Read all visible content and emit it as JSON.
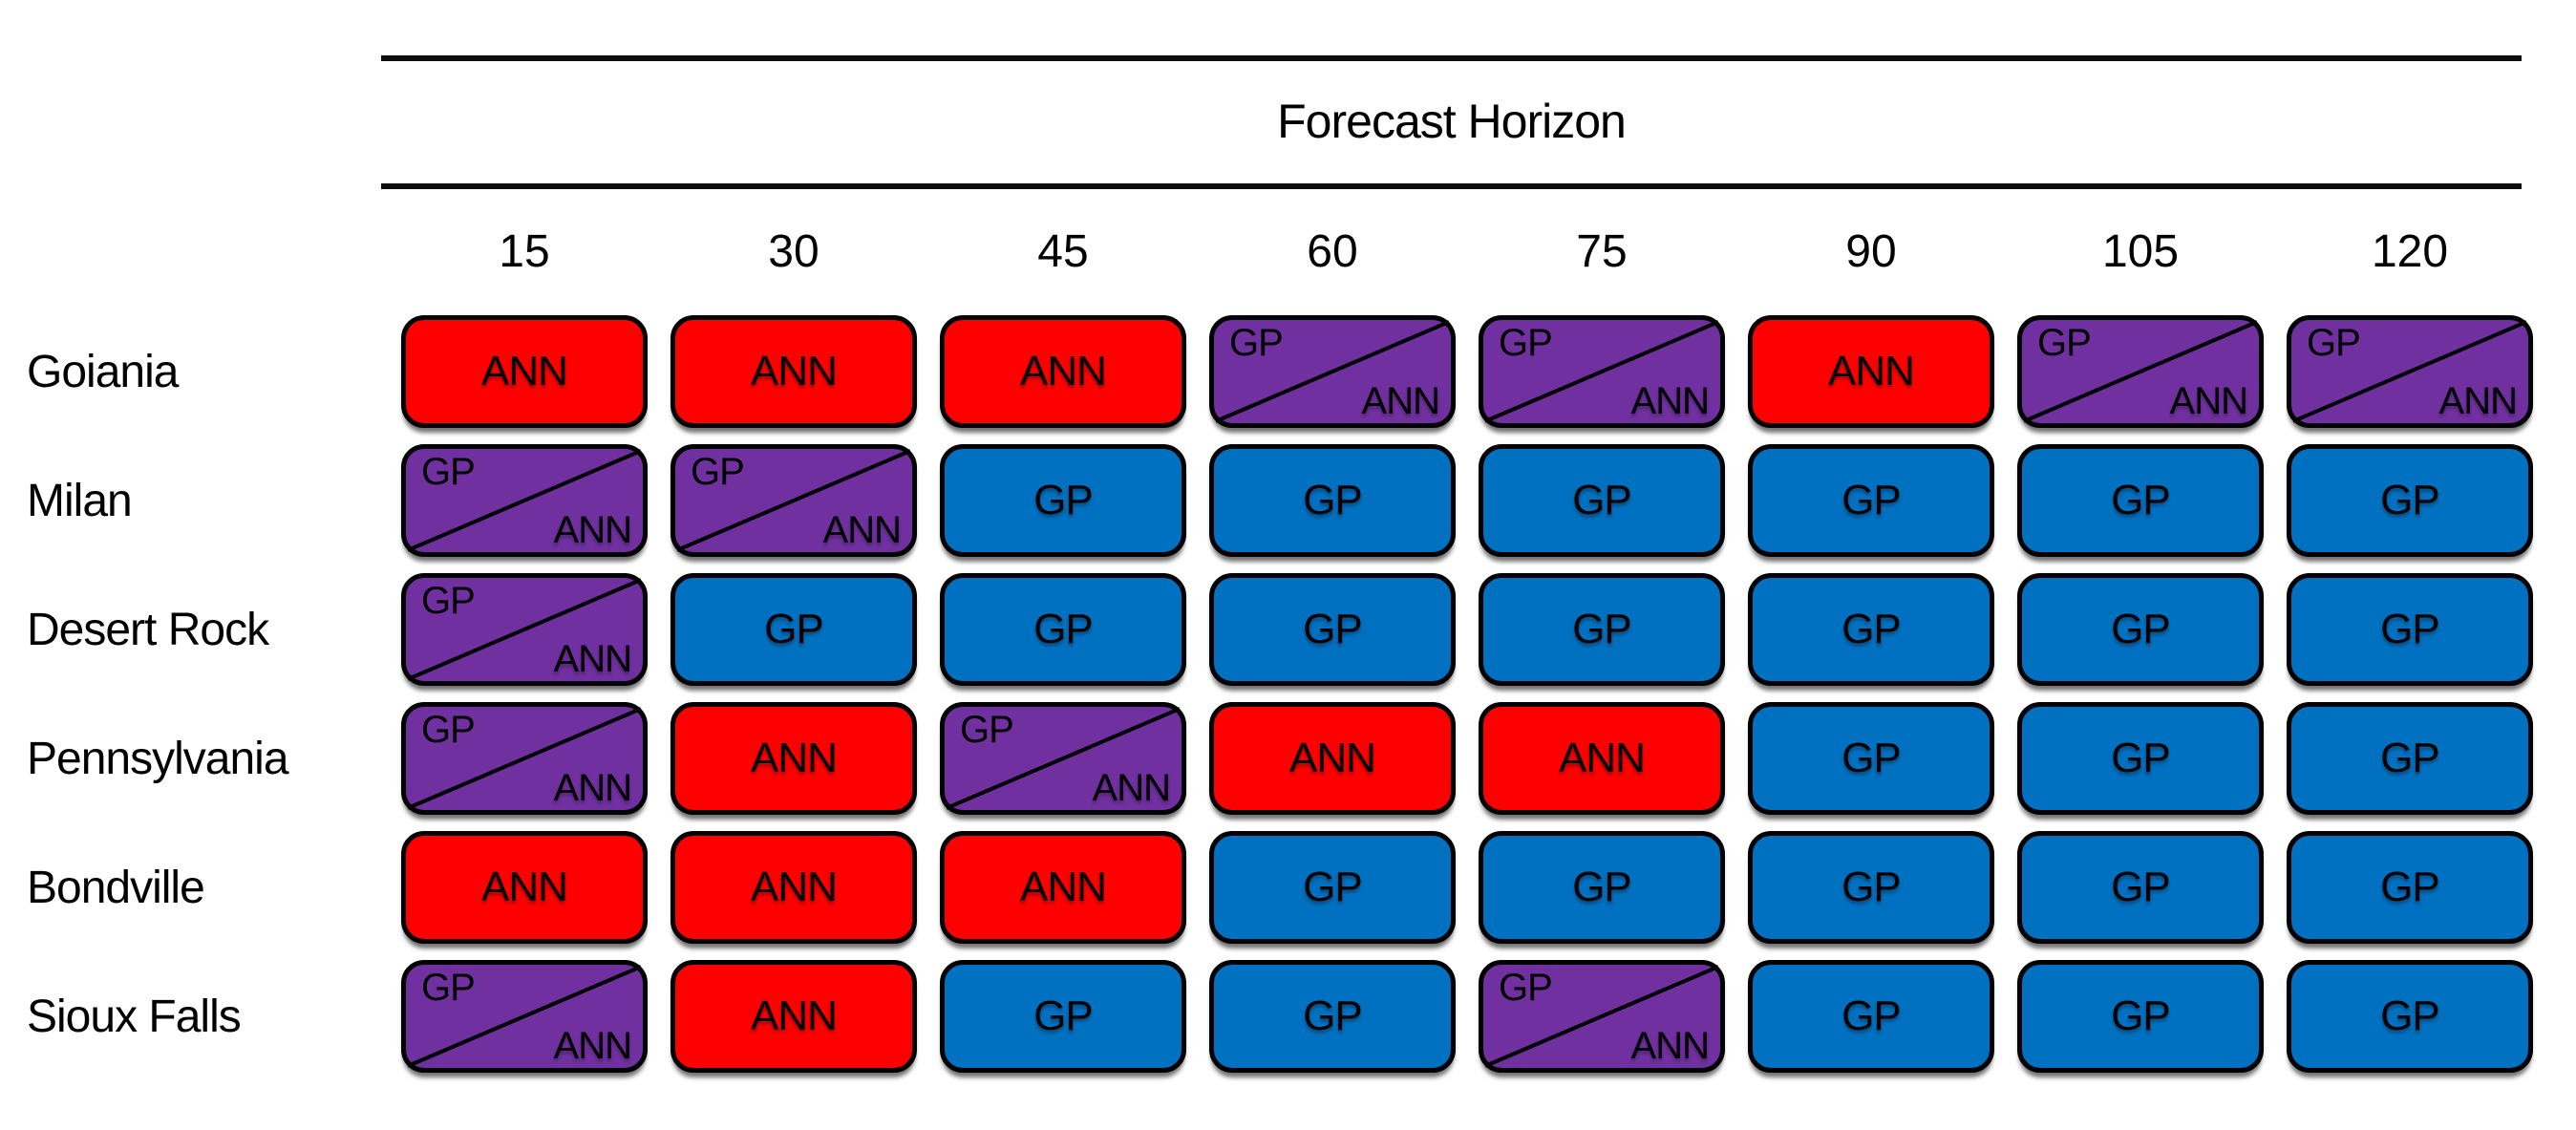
{
  "header": {
    "title": "Forecast Horizon"
  },
  "columns": [
    "15",
    "30",
    "45",
    "60",
    "75",
    "90",
    "105",
    "120"
  ],
  "cell_labels": {
    "gp": "GP",
    "ann": "ANN"
  },
  "colors": {
    "ann": "#FF0000",
    "gp": "#0070C0",
    "gp_ann": "#7030A0",
    "border": "#000000",
    "text": "#000000"
  },
  "rows": [
    {
      "label": "Goiania",
      "cells": [
        "ANN",
        "ANN",
        "ANN",
        "GP/ANN",
        "GP/ANN",
        "ANN",
        "GP/ANN",
        "GP/ANN"
      ]
    },
    {
      "label": "Milan",
      "cells": [
        "GP/ANN",
        "GP/ANN",
        "GP",
        "GP",
        "GP",
        "GP",
        "GP",
        "GP"
      ]
    },
    {
      "label": "Desert Rock",
      "cells": [
        "GP/ANN",
        "GP",
        "GP",
        "GP",
        "GP",
        "GP",
        "GP",
        "GP"
      ]
    },
    {
      "label": "Pennsylvania",
      "cells": [
        "GP/ANN",
        "ANN",
        "GP/ANN",
        "ANN",
        "ANN",
        "GP",
        "GP",
        "GP"
      ]
    },
    {
      "label": "Bondville",
      "cells": [
        "ANN",
        "ANN",
        "ANN",
        "GP",
        "GP",
        "GP",
        "GP",
        "GP"
      ]
    },
    {
      "label": "Sioux Falls",
      "cells": [
        "GP/ANN",
        "ANN",
        "GP",
        "GP",
        "GP/ANN",
        "GP",
        "GP",
        "GP"
      ]
    }
  ],
  "chart_data": {
    "type": "heatmap",
    "title": "Forecast Horizon",
    "xlabel": "Forecast Horizon",
    "ylabel": "",
    "x_categories": [
      15,
      30,
      45,
      60,
      75,
      90,
      105,
      120
    ],
    "y_categories": [
      "Goiania",
      "Milan",
      "Desert Rock",
      "Pennsylvania",
      "Bondville",
      "Sioux Falls"
    ],
    "values": [
      [
        "ANN",
        "ANN",
        "ANN",
        "GP/ANN",
        "GP/ANN",
        "ANN",
        "GP/ANN",
        "GP/ANN"
      ],
      [
        "GP/ANN",
        "GP/ANN",
        "GP",
        "GP",
        "GP",
        "GP",
        "GP",
        "GP"
      ],
      [
        "GP/ANN",
        "GP",
        "GP",
        "GP",
        "GP",
        "GP",
        "GP",
        "GP"
      ],
      [
        "GP/ANN",
        "ANN",
        "GP/ANN",
        "ANN",
        "ANN",
        "GP",
        "GP",
        "GP"
      ],
      [
        "ANN",
        "ANN",
        "ANN",
        "GP",
        "GP",
        "GP",
        "GP",
        "GP"
      ],
      [
        "GP/ANN",
        "ANN",
        "GP",
        "GP",
        "GP/ANN",
        "GP",
        "GP",
        "GP"
      ]
    ],
    "color_map": {
      "ANN": "#FF0000",
      "GP": "#0070C0",
      "GP/ANN": "#7030A0"
    },
    "legend_position": "none",
    "grid": false
  }
}
